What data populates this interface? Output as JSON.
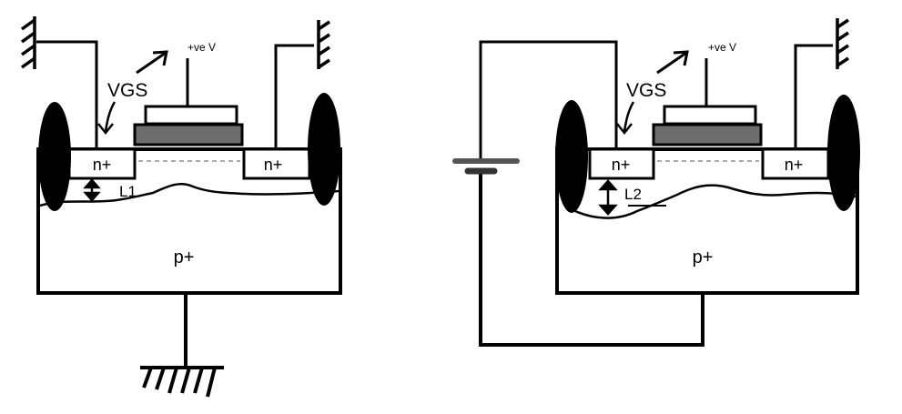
{
  "left_device": {
    "gate_voltage_label": "+ve V",
    "vgs_label": "VGS",
    "source_region_label": "n+",
    "drain_region_label": "n+",
    "substrate_label": "p+",
    "depletion_width_label": "L1"
  },
  "right_device": {
    "gate_voltage_label": "+ve V",
    "vgs_label": "VGS",
    "source_region_label": "n+",
    "drain_region_label": "n+",
    "substrate_label": "p+",
    "depletion_width_label": "L2"
  },
  "colors": {
    "line": "#000000",
    "gate_oxide": "#6e6e6e",
    "battery": "#555555",
    "background": "#ffffff"
  }
}
